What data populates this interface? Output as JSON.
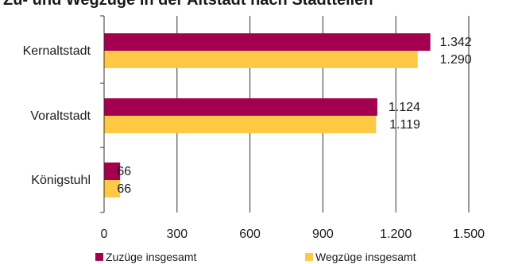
{
  "chart_data": {
    "type": "bar",
    "orientation": "horizontal",
    "title": "Zu- und Wegzüge in der Altstadt nach Stadtteilen",
    "categories": [
      "Kernaltstadt",
      "Voraltstadt",
      "Königstuhl"
    ],
    "series": [
      {
        "name": "Zuzüge insgesamt",
        "color": "#a3004f",
        "values": [
          1342,
          1124,
          66
        ],
        "labels": [
          "1.342",
          "1.124",
          "66"
        ]
      },
      {
        "name": "Wegzüge insgesamt",
        "color": "#ffc845",
        "values": [
          1290,
          1119,
          66
        ],
        "labels": [
          "1.290",
          "1.119",
          "66"
        ]
      }
    ],
    "xlim": [
      0,
      1500
    ],
    "ticks": [
      0,
      300,
      600,
      900,
      1200,
      1500
    ],
    "tick_labels": [
      "0",
      "300",
      "600",
      "900",
      "1.200",
      "1.500"
    ],
    "grid": true,
    "legend_position": "bottom"
  }
}
